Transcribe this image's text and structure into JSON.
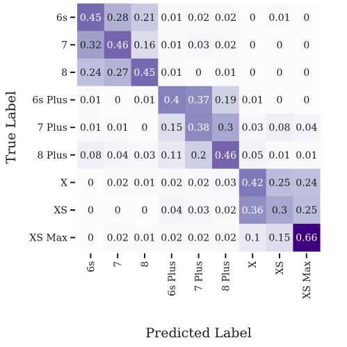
{
  "chart_data": {
    "type": "heatmap",
    "title": "",
    "xlabel": "Predicted Label",
    "ylabel": "True Label",
    "x_categories": [
      "6s",
      "7",
      "8",
      "6s Plus",
      "7 Plus",
      "8 Plus",
      "X",
      "XS",
      "XS Max"
    ],
    "y_categories": [
      "6s",
      "7",
      "8",
      "6s Plus",
      "7 Plus",
      "8 Plus",
      "X",
      "XS",
      "XS Max"
    ],
    "values": [
      [
        0.45,
        0.28,
        0.21,
        0.01,
        0.02,
        0.02,
        0,
        0.01,
        0
      ],
      [
        0.32,
        0.46,
        0.16,
        0.01,
        0.03,
        0.02,
        0,
        0,
        0
      ],
      [
        0.24,
        0.27,
        0.45,
        0.01,
        0,
        0.01,
        0,
        0,
        0
      ],
      [
        0.01,
        0,
        0.01,
        0.4,
        0.37,
        0.19,
        0.01,
        0,
        0
      ],
      [
        0.01,
        0.01,
        0,
        0.15,
        0.38,
        0.3,
        0.03,
        0.08,
        0.04
      ],
      [
        0.08,
        0.04,
        0.03,
        0.11,
        0.2,
        0.46,
        0.05,
        0.01,
        0.01
      ],
      [
        0,
        0.02,
        0.01,
        0.02,
        0.02,
        0.03,
        0.42,
        0.25,
        0.24
      ],
      [
        0,
        0,
        0,
        0.04,
        0.03,
        0.02,
        0.36,
        0.3,
        0.25
      ],
      [
        0,
        0.02,
        0.01,
        0.02,
        0.02,
        0.02,
        0.1,
        0.15,
        0.66
      ]
    ],
    "colormap": "purples",
    "color_low": "#fcfbfd",
    "color_high": "#3f007d",
    "text_dark": "#1a1a1a",
    "text_light": "#ffffff",
    "grid": false,
    "legend": "none"
  }
}
